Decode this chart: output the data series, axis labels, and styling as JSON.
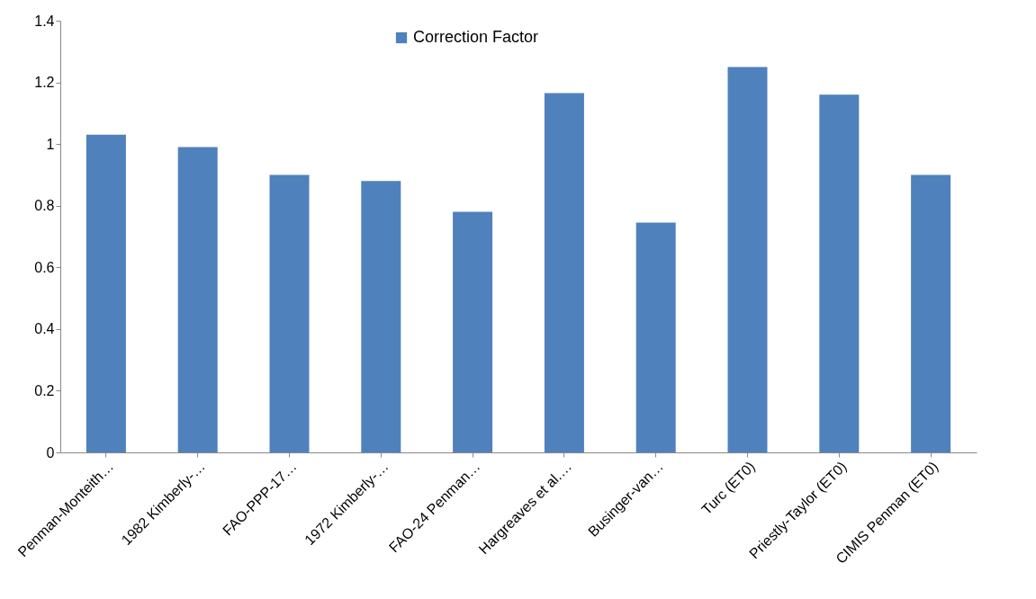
{
  "chart_data": {
    "type": "bar",
    "categories": [
      "Penman-Monteith…",
      "1982 Kimberly-…",
      "FAO-PPP-17…",
      "1972 Kimberly-…",
      "FAO-24 Penman…",
      "Hargreaves et al.…",
      "Businger-van…",
      "Turc (ET0)",
      "Priestly-Taylor (ET0)",
      "CIMIS Penman (ET0)"
    ],
    "series": [
      {
        "name": "Correction Factor",
        "color": "#4f81bd",
        "values": [
          1.03,
          0.99,
          0.9,
          0.88,
          0.78,
          1.165,
          0.745,
          1.25,
          1.16,
          0.9
        ]
      }
    ],
    "ylim": [
      0,
      1.4
    ],
    "yticks": [
      0,
      0.2,
      0.4,
      0.6,
      0.8,
      1,
      1.2,
      1.4
    ],
    "grid": false,
    "legend": "top"
  }
}
